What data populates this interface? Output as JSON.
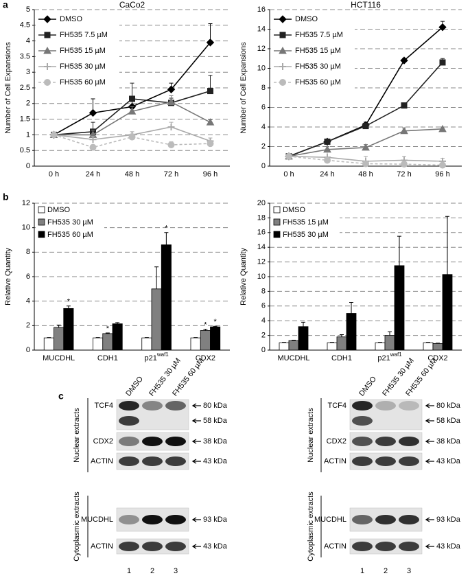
{
  "panels": [
    "a",
    "b",
    "c"
  ],
  "chart_data": [
    {
      "type": "line",
      "title": "CaCo2",
      "ylabel": "Number of Cell Expansions",
      "categories": [
        "0 h",
        "24 h",
        "48 h",
        "72 h",
        "96 h"
      ],
      "ylim": [
        0,
        5
      ],
      "yticks": [
        0,
        0.5,
        1,
        1.5,
        2,
        2.5,
        3,
        3.5,
        4,
        4.5,
        5
      ],
      "grid": true,
      "legend": "upper left",
      "series": [
        {
          "name": "DMSO",
          "color": "#000000",
          "marker": "diamond",
          "dashed": false,
          "values": [
            1,
            1.7,
            1.9,
            2.45,
            3.95
          ],
          "errors": [
            0,
            0.45,
            0.2,
            0.2,
            0.6
          ]
        },
        {
          "name": "FH535 7.5 µM",
          "color": "#222222",
          "marker": "square",
          "dashed": false,
          "values": [
            1,
            1.1,
            2.15,
            2.02,
            2.4
          ],
          "errors": [
            0,
            0.3,
            0.5,
            0.15,
            0.5
          ]
        },
        {
          "name": "FH535 15 µM",
          "color": "#777777",
          "marker": "triangle",
          "dashed": false,
          "values": [
            1,
            1.0,
            1.75,
            2.05,
            1.4
          ],
          "errors": [
            0,
            0.15,
            0.15,
            0.2,
            0.08
          ]
        },
        {
          "name": "FH535 30 µM",
          "color": "#aaaaaa",
          "marker": "plus",
          "dashed": false,
          "values": [
            1,
            0.85,
            1.0,
            1.25,
            0.8
          ],
          "errors": [
            0,
            0.1,
            0.1,
            0.15,
            0.1
          ]
        },
        {
          "name": "FH535 60 µM",
          "color": "#bbbbbb",
          "marker": "circle",
          "dashed": true,
          "values": [
            1,
            0.6,
            0.93,
            0.68,
            0.72
          ],
          "errors": [
            0,
            0.08,
            0.1,
            0.1,
            0.1
          ]
        }
      ]
    },
    {
      "type": "line",
      "title": "HCT116",
      "ylabel": "Number of Cell Expansions",
      "categories": [
        "0 h",
        "24 h",
        "48 h",
        "72 h",
        "96 h"
      ],
      "ylim": [
        0,
        16
      ],
      "yticks": [
        0,
        2,
        4,
        6,
        8,
        10,
        12,
        14,
        16
      ],
      "grid": true,
      "legend": "upper left",
      "series": [
        {
          "name": "DMSO",
          "color": "#000000",
          "marker": "diamond",
          "dashed": false,
          "values": [
            1,
            2.5,
            4.2,
            10.8,
            14.2
          ],
          "errors": [
            0,
            0.2,
            0.3,
            0.2,
            0.6
          ]
        },
        {
          "name": "FH535 7.5 µM",
          "color": "#222222",
          "marker": "square",
          "dashed": false,
          "values": [
            1,
            2.5,
            4.1,
            6.2,
            10.6
          ],
          "errors": [
            0,
            0.2,
            0.3,
            0.2,
            0.4
          ]
        },
        {
          "name": "FH535 15 µM",
          "color": "#777777",
          "marker": "triangle",
          "dashed": false,
          "values": [
            1,
            1.7,
            1.9,
            3.6,
            3.8
          ],
          "errors": [
            0,
            0.3,
            0.3,
            0.3,
            0.2
          ]
        },
        {
          "name": "FH535 30 µM",
          "color": "#aaaaaa",
          "marker": "plus",
          "dashed": false,
          "values": [
            1,
            0.9,
            0.5,
            0.6,
            0.5
          ],
          "errors": [
            0,
            0.5,
            0.5,
            0.4,
            0.3
          ]
        },
        {
          "name": "FH535 60 µM",
          "color": "#bbbbbb",
          "marker": "circle",
          "dashed": true,
          "values": [
            1,
            0.6,
            0.25,
            0.2,
            0.1
          ],
          "errors": [
            0,
            0.1,
            0.1,
            0.1,
            0.1
          ]
        }
      ]
    },
    {
      "type": "bar",
      "ylabel": "Relative Quantity",
      "categories": [
        "MUCDHL",
        "CDH1",
        "p21",
        "CDX2"
      ],
      "superscripts": [
        null,
        null,
        "waf1",
        null
      ],
      "ylim": [
        0,
        12
      ],
      "yticks": [
        0,
        2,
        4,
        6,
        8,
        10,
        12
      ],
      "grid": true,
      "legend": "upper left",
      "series": [
        {
          "name": "DMSO",
          "color": "#ffffff",
          "values": [
            1,
            1,
            1,
            1
          ],
          "errors": [
            0.03,
            0.03,
            0.03,
            0.03
          ]
        },
        {
          "name": "FH535 30 µM",
          "color": "#808080",
          "values": [
            1.85,
            1.35,
            5.0,
            1.6
          ],
          "errors": [
            0.2,
            0.05,
            1.8,
            0.1
          ]
        },
        {
          "name": "FH535 60 µM",
          "color": "#000000",
          "values": [
            3.4,
            2.15,
            8.6,
            1.9
          ],
          "errors": [
            0.2,
            0.1,
            1.0,
            0.05
          ]
        }
      ],
      "annotations": [
        {
          "text": "*",
          "series": 2,
          "category": 0
        },
        {
          "text": "*",
          "series": 1,
          "category": 1
        },
        {
          "text": "*",
          "series": 2,
          "category": 2
        },
        {
          "text": "*",
          "series": 1,
          "category": 3
        },
        {
          "text": "*",
          "series": 2,
          "category": 3
        }
      ]
    },
    {
      "type": "bar",
      "ylabel": "Relative Quantity",
      "categories": [
        "MUCDHL",
        "CDH1",
        "p21",
        "CDX2"
      ],
      "superscripts": [
        null,
        null,
        "waf1",
        null
      ],
      "ylim": [
        0,
        20
      ],
      "yticks": [
        0,
        2,
        4,
        6,
        8,
        10,
        12,
        14,
        16,
        18,
        20
      ],
      "grid": true,
      "legend": "upper left",
      "series": [
        {
          "name": "DMSO",
          "color": "#ffffff",
          "values": [
            1,
            1,
            1,
            1
          ],
          "errors": [
            0.05,
            0.05,
            0.05,
            0.05
          ]
        },
        {
          "name": "FH535 15 µM",
          "color": "#808080",
          "values": [
            1.3,
            1.8,
            2.0,
            0.9
          ],
          "errors": [
            0.05,
            0.3,
            0.5,
            0.05
          ]
        },
        {
          "name": "FH535 30 µM",
          "color": "#000000",
          "values": [
            3.2,
            5.0,
            11.5,
            10.3
          ],
          "errors": [
            0.6,
            1.5,
            4.0,
            7.9
          ]
        }
      ],
      "annotations": []
    }
  ],
  "blots": [
    {
      "lanes": [
        "DMSO",
        "FH535 30 µM",
        "FH535 60 µM"
      ],
      "lane_numbers": [
        "1",
        "2",
        "3"
      ],
      "groups": [
        {
          "label": "Nuclear extracts",
          "rows": [
            {
              "name": "TCF4",
              "markers": [
                "80 kDa",
                "58 kDa"
              ]
            },
            {
              "name": "CDX2",
              "markers": [
                "38 kDa"
              ]
            },
            {
              "name": "ACTIN",
              "markers": [
                "43 kDa"
              ]
            }
          ]
        },
        {
          "label": "Cytoplasmic extracts",
          "rows": [
            {
              "name": "MUCDHL",
              "markers": [
                "93 kDa"
              ]
            },
            {
              "name": "ACTIN",
              "markers": [
                "43 kDa"
              ]
            }
          ]
        }
      ]
    },
    {
      "lanes": [
        "DMSO",
        "FH535 30 µM",
        "FH535 60 µM"
      ],
      "lane_numbers": [
        "1",
        "2",
        "3"
      ],
      "groups": [
        {
          "label": "Nuclear extracts",
          "rows": [
            {
              "name": "TCF4",
              "markers": [
                "80 kDa",
                "58 kDa"
              ]
            },
            {
              "name": "CDX2",
              "markers": [
                "38 kDa"
              ]
            },
            {
              "name": "ACTIN",
              "markers": [
                "43 kDa"
              ]
            }
          ]
        },
        {
          "label": "Cytoplasmic extracts",
          "rows": [
            {
              "name": "MUCDHL",
              "markers": [
                "93 kDa"
              ]
            },
            {
              "name": "ACTIN",
              "markers": [
                "43 kDa"
              ]
            }
          ]
        }
      ]
    }
  ]
}
